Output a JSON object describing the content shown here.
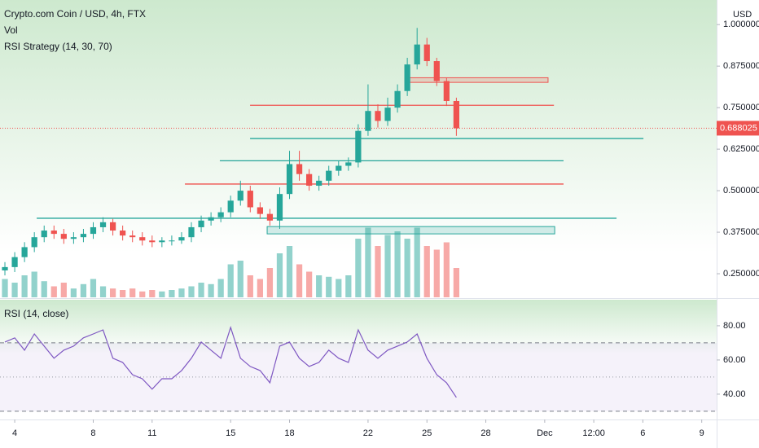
{
  "chart_data": [
    {
      "type": "candlestick",
      "title": "Crypto.com Coin / USD, 4h, FTX",
      "indicators": [
        "Vol",
        "RSI Strategy (14, 30, 70)"
      ],
      "currency": "USD",
      "up_color": "#26a69a",
      "down_color": "#ef5350",
      "x": [
        3.5,
        4,
        4.5,
        5,
        5.5,
        6,
        6.5,
        7,
        7.5,
        8,
        8.5,
        9,
        9.5,
        10,
        10.5,
        11,
        11.5,
        12,
        12.5,
        13,
        13.5,
        14,
        14.5,
        15,
        15.5,
        16,
        16.5,
        17,
        17.5,
        18,
        18.5,
        19,
        19.5,
        20,
        20.5,
        21,
        21.5,
        22,
        22.5,
        23,
        23.5,
        24,
        24.5,
        25,
        25.5,
        26,
        26.5
      ],
      "open": [
        0.26,
        0.27,
        0.3,
        0.33,
        0.36,
        0.38,
        0.37,
        0.355,
        0.36,
        0.37,
        0.39,
        0.405,
        0.38,
        0.365,
        0.36,
        0.35,
        0.345,
        0.35,
        0.35,
        0.36,
        0.39,
        0.41,
        0.42,
        0.435,
        0.47,
        0.5,
        0.45,
        0.43,
        0.41,
        0.49,
        0.58,
        0.55,
        0.515,
        0.53,
        0.56,
        0.575,
        0.585,
        0.68,
        0.74,
        0.71,
        0.75,
        0.8,
        0.88,
        0.94,
        0.89,
        0.83,
        0.77
      ],
      "high": [
        0.285,
        0.315,
        0.345,
        0.375,
        0.395,
        0.395,
        0.385,
        0.375,
        0.385,
        0.405,
        0.42,
        0.415,
        0.395,
        0.38,
        0.375,
        0.365,
        0.36,
        0.365,
        0.375,
        0.405,
        0.425,
        0.435,
        0.45,
        0.485,
        0.53,
        0.515,
        0.465,
        0.445,
        0.51,
        0.62,
        0.62,
        0.565,
        0.545,
        0.575,
        0.59,
        0.6,
        0.7,
        0.82,
        0.76,
        0.78,
        0.82,
        0.9,
        0.99,
        0.96,
        0.9,
        0.84,
        0.78
      ],
      "low": [
        0.245,
        0.255,
        0.285,
        0.315,
        0.345,
        0.355,
        0.34,
        0.34,
        0.345,
        0.355,
        0.375,
        0.365,
        0.35,
        0.345,
        0.335,
        0.33,
        0.33,
        0.335,
        0.34,
        0.345,
        0.375,
        0.395,
        0.405,
        0.42,
        0.455,
        0.435,
        0.415,
        0.395,
        0.385,
        0.475,
        0.53,
        0.5,
        0.5,
        0.515,
        0.545,
        0.56,
        0.57,
        0.665,
        0.69,
        0.695,
        0.735,
        0.785,
        0.865,
        0.875,
        0.815,
        0.755,
        0.665
      ],
      "close": [
        0.27,
        0.3,
        0.33,
        0.36,
        0.38,
        0.37,
        0.355,
        0.36,
        0.37,
        0.39,
        0.405,
        0.38,
        0.365,
        0.36,
        0.35,
        0.345,
        0.35,
        0.35,
        0.36,
        0.39,
        0.41,
        0.42,
        0.435,
        0.47,
        0.5,
        0.45,
        0.43,
        0.41,
        0.49,
        0.58,
        0.55,
        0.515,
        0.53,
        0.56,
        0.575,
        0.585,
        0.68,
        0.74,
        0.71,
        0.75,
        0.8,
        0.88,
        0.94,
        0.89,
        0.83,
        0.77,
        0.688
      ],
      "volume": [
        25,
        20,
        30,
        35,
        22,
        15,
        20,
        12,
        18,
        25,
        15,
        12,
        10,
        12,
        8,
        10,
        8,
        10,
        12,
        15,
        20,
        18,
        25,
        45,
        50,
        30,
        25,
        40,
        60,
        70,
        45,
        35,
        30,
        28,
        25,
        30,
        80,
        95,
        70,
        85,
        90,
        80,
        95,
        70,
        65,
        75,
        40
      ],
      "vlim": [
        0,
        100
      ],
      "last_price": 0.688025,
      "xlim": [
        3.25,
        39.76
      ],
      "xticks": [
        4,
        8,
        11,
        15,
        18,
        22,
        25,
        28,
        {
          "value": 31,
          "label": "Dec"
        },
        {
          "value": 33.5,
          "label": "12:00"
        },
        {
          "value": 36,
          "label": "6"
        },
        {
          "value": 39,
          "label": "9"
        }
      ],
      "ylim": [
        0.179,
        1.074
      ],
      "yticks": [
        {
          "value": 1.0,
          "label": "1.000000"
        },
        {
          "value": 0.875,
          "label": "0.875000"
        },
        {
          "value": 0.75,
          "label": "0.750000"
        },
        {
          "value": 0.625,
          "label": "0.625000"
        },
        {
          "value": 0.5,
          "label": "0.500000"
        },
        {
          "value": 0.375,
          "label": "0.375000"
        },
        {
          "value": 0.25,
          "label": "0.250000"
        }
      ],
      "levels": [
        {
          "y": 0.757,
          "x": [
            15.99,
            31.47
          ],
          "color": "#ef5350"
        },
        {
          "y": 0.657,
          "x": [
            15.99,
            36.03
          ],
          "color": "#26a69a"
        },
        {
          "y": 0.59,
          "x": [
            14.45,
            31.96
          ],
          "color": "#26a69a"
        },
        {
          "y": 0.52,
          "x": [
            12.67,
            31.96
          ],
          "color": "#ef5350"
        },
        {
          "y": 0.417,
          "x": [
            5.12,
            34.66
          ],
          "color": "#26a69a"
        }
      ],
      "zones": [
        {
          "y": [
            0.826,
            0.84
          ],
          "x": [
            23.87,
            31.17
          ],
          "color": "#ef5350"
        },
        {
          "y": [
            0.37,
            0.392
          ],
          "x": [
            16.86,
            31.51
          ],
          "color": "#26a69a"
        }
      ]
    },
    {
      "type": "line",
      "title": "RSI (14, close)",
      "color": "#7e57c2",
      "values": [
        70.5,
        72.9,
        65.7,
        75.2,
        68.1,
        61,
        65.7,
        68.1,
        72.9,
        75.2,
        77.6,
        61,
        58.6,
        51.4,
        49,
        42.9,
        49,
        49,
        53.8,
        61,
        70.5,
        65.7,
        61,
        79,
        61,
        56.2,
        53.8,
        46.7,
        68.1,
        70.5,
        61,
        56.2,
        58.6,
        65.7,
        61,
        58.6,
        77.6,
        65.7,
        61,
        65.7,
        68.1,
        70.5,
        75.2,
        61,
        51.4,
        46.7,
        38.1
      ],
      "ylim": [
        25.2,
        95.2
      ],
      "yticks": [
        {
          "value": 80,
          "label": "80.00"
        },
        {
          "value": 60,
          "label": "60.00"
        },
        {
          "value": 40,
          "label": "40.00"
        }
      ],
      "bands": [
        30,
        70
      ],
      "midline": 50
    }
  ]
}
